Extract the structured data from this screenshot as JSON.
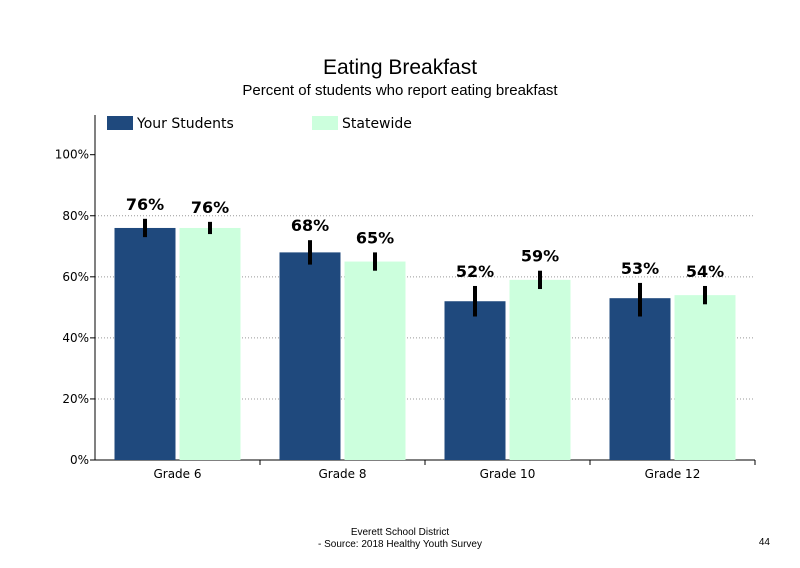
{
  "chart_data": {
    "type": "bar",
    "title": "Eating Breakfast",
    "subtitle": "Percent of students who report eating breakfast",
    "categories": [
      "Grade 6",
      "Grade 8",
      "Grade 10",
      "Grade 12"
    ],
    "series": [
      {
        "name": "Your Students",
        "color": "#1f497d",
        "values": [
          76,
          68,
          52,
          53
        ],
        "labels": [
          "76%",
          "68%",
          "52%",
          "53%"
        ],
        "error_low": [
          73,
          64,
          47,
          47
        ],
        "error_high": [
          79,
          72,
          57,
          58
        ]
      },
      {
        "name": "Statewide",
        "color": "#ccffdd",
        "values": [
          76,
          65,
          59,
          54
        ],
        "labels": [
          "76%",
          "65%",
          "59%",
          "54%"
        ],
        "error_low": [
          74,
          62,
          56,
          51
        ],
        "error_high": [
          78,
          68,
          62,
          57
        ]
      }
    ],
    "ylim": [
      0,
      113
    ],
    "yticks": [
      0,
      20,
      40,
      60,
      80,
      100
    ],
    "ytick_labels": [
      "0%",
      "20%",
      "40%",
      "60%",
      "80%",
      "100%"
    ],
    "gridlines": [
      20,
      40,
      60,
      80
    ],
    "legend_position": "top"
  },
  "footer": {
    "line1": "Everett School District",
    "line2": "- Source: 2018 Healthy  Youth Survey"
  },
  "page_number": "44"
}
